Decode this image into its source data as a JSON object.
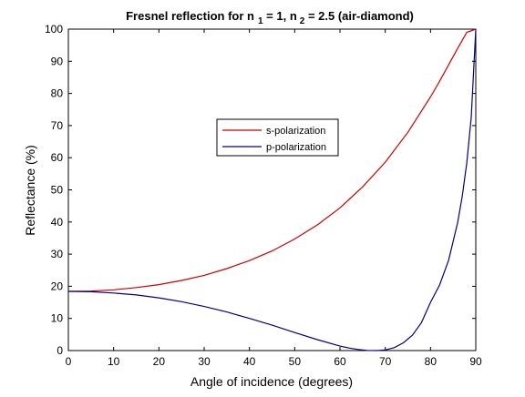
{
  "chart_data": {
    "type": "line",
    "title_parts": {
      "main": "Fresnel reflection for n",
      "sub1": "1",
      "mid": " = 1, n",
      "sub2": "2",
      "tail": " = 2.5 (air-diamond)"
    },
    "xlabel": "Angle of incidence (degrees)",
    "ylabel": "Reflectance (%)",
    "xlim": [
      0,
      90
    ],
    "ylim": [
      0,
      100
    ],
    "xticks": [
      0,
      10,
      20,
      30,
      40,
      50,
      60,
      70,
      80,
      90
    ],
    "yticks": [
      0,
      10,
      20,
      30,
      40,
      50,
      60,
      70,
      80,
      90,
      100
    ],
    "grid": false,
    "legend_position": "center",
    "series": [
      {
        "name": "s-polarization",
        "color": "#cc0000",
        "x": [
          0,
          5,
          10,
          15,
          20,
          25,
          30,
          35,
          40,
          45,
          50,
          55,
          60,
          65,
          70,
          75,
          80,
          82,
          84,
          86,
          88,
          90
        ],
        "y": [
          18.4,
          18.5,
          18.9,
          19.6,
          20.5,
          21.8,
          23.4,
          25.5,
          28.0,
          31.0,
          34.7,
          39.1,
          44.4,
          50.9,
          58.6,
          67.9,
          78.9,
          83.8,
          88.9,
          94.0,
          99.0,
          100
        ]
      },
      {
        "name": "p-polarization",
        "color": "#00008b",
        "x": [
          0,
          5,
          10,
          15,
          20,
          25,
          30,
          35,
          40,
          45,
          50,
          55,
          60,
          62,
          64,
          66,
          68.2,
          70,
          72,
          74,
          76,
          78,
          80,
          82,
          84,
          86,
          87,
          88,
          89,
          90
        ],
        "y": [
          18.4,
          18.3,
          17.9,
          17.3,
          16.4,
          15.2,
          13.7,
          12.0,
          10.0,
          7.9,
          5.6,
          3.4,
          1.4,
          0.8,
          0.35,
          0.07,
          0.0,
          0.2,
          0.9,
          2.4,
          4.8,
          8.7,
          15.0,
          20.4,
          28.1,
          39.8,
          47.9,
          58.3,
          72.5,
          100
        ]
      }
    ]
  }
}
